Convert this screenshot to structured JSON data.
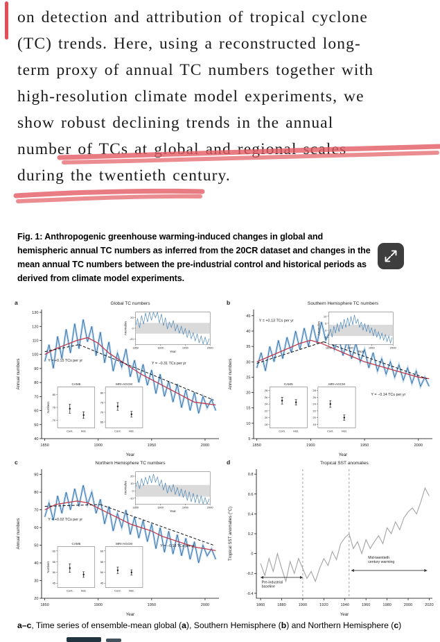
{
  "paragraph": {
    "lines": [
      "on detection and attribution of tropical cyclone",
      "(TC) trends. Here, using a reconstructed long-",
      "term proxy of annual TC numbers together with",
      "high-resolution climate model experiments, we",
      "show robust declining trends in the annual",
      "number of TCs at global and regional scales",
      "during the twentieth century."
    ]
  },
  "figure_caption": {
    "lines": [
      "Fig. 1: Anthropogenic greenhouse warming-induced changes in global and",
      "hemispheric annual TC numbers as inferred from the 20CR dataset and changes in the",
      "mean annual TC numbers between the pre-industrial control and historical periods as",
      "derived from climate model experiments."
    ]
  },
  "expand_button": {
    "icon": "expand-arrows-icon"
  },
  "subcaption": {
    "segments": [
      {
        "t": "a–c",
        "b": true
      },
      {
        "t": ", Time series of ensemble-mean global (",
        "b": false
      },
      {
        "t": "a",
        "b": true
      },
      {
        "t": "), Southern Hemisphere (",
        "b": false
      },
      {
        "t": "b",
        "b": true
      },
      {
        "t": ") and Northern Hemisphere (",
        "b": false
      },
      {
        "t": "c",
        "b": true
      },
      {
        "t": ")",
        "b": false
      }
    ]
  },
  "colors": {
    "marker_red": "#e35b63",
    "margin_bar_red": "#e23b41",
    "ensemble_blue": "#2e6da4",
    "band_blue": "#8ab8dc",
    "smoothed_red": "#c0394b",
    "trend_black": "#111111",
    "sst_gray": "#a3a3a3"
  },
  "chart_data": [
    {
      "type": "line",
      "panel_label": "a",
      "title": "Global TC numbers",
      "xlabel": "Year",
      "ylabel": "Annual numbers",
      "xlim": [
        1847,
        2013
      ],
      "ylim": [
        40,
        132
      ],
      "xticks": [
        1850,
        1900,
        1950,
        2000
      ],
      "yticks": [
        40,
        50,
        60,
        70,
        80,
        90,
        100,
        110,
        120,
        130
      ],
      "ml": 40,
      "series": [
        {
          "name": "20CR ensemble annual TC numbers",
          "color": "#2e6da4",
          "band": "#8ab8dc",
          "width": 0.9,
          "x0": 1850,
          "dx": 4,
          "y": [
            95,
            107,
            90,
            113,
            97,
            118,
            101,
            122,
            104,
            125,
            109,
            120,
            99,
            116,
            94,
            109,
            88,
            101,
            91,
            104,
            84,
            96,
            80,
            93,
            78,
            89,
            72,
            86,
            70,
            81,
            66,
            79,
            62,
            75,
            60,
            73,
            58,
            70,
            62,
            68,
            60
          ]
        },
        {
          "name": "smoothed",
          "color": "#c0394b",
          "width": 1.3,
          "x0": 1850,
          "dx": 10,
          "y": [
            100,
            104,
            107,
            110,
            112,
            108,
            101,
            96,
            91,
            86,
            82,
            78,
            74,
            70,
            66,
            65,
            64
          ]
        }
      ],
      "trends": [
        {
          "x1": 1850,
          "y1": 102,
          "x2": 1882,
          "y2": 107
        },
        {
          "x1": 1882,
          "y1": 107,
          "x2": 2008,
          "y2": 67.5
        }
      ],
      "annotations": [
        {
          "x": 1853,
          "y": 95,
          "text": "Y = +0.15 TCs per yr"
        },
        {
          "x": 1950,
          "y": 93,
          "text": "Y = −0.31 TCs per yr"
        }
      ],
      "anom_inset": {
        "rect": [
          0.53,
          0.02,
          0.95,
          0.27
        ],
        "xlim": [
          1850,
          2000
        ],
        "xticks": [
          1850,
          1900,
          1950,
          2000
        ],
        "ylim": [
          -30,
          30
        ],
        "yticks": [
          20,
          0,
          -20
        ],
        "band": [
          -10,
          10
        ],
        "ylabel": "Anomalies",
        "xlabel": "Year"
      },
      "box_insets": [
        {
          "title": "CAM5",
          "rect": [
            0.09,
            0.6,
            0.3,
            0.97
          ],
          "ylim": [
            67,
            83
          ],
          "yticks": [
            70,
            75,
            80
          ],
          "ylabel": "Numbers",
          "points": [
            {
              "label": "Cont.",
              "v": 74.5,
              "e": 1.8
            },
            {
              "label": "Hist.",
              "v": 72,
              "e": 1.3
            }
          ]
        },
        {
          "title": "MRI-AGCM",
          "rect": [
            0.36,
            0.6,
            0.57,
            0.97
          ],
          "ylim": [
            62,
            83
          ],
          "yticks": [
            65,
            70,
            75,
            80
          ],
          "points": [
            {
              "label": "Cont.",
              "v": 73,
              "e": 2
            },
            {
              "label": "Hist.",
              "v": 69,
              "e": 1.5
            }
          ]
        }
      ]
    },
    {
      "type": "line",
      "panel_label": "b",
      "title": "Southern Hemisphere TC numbers",
      "xlabel": "Year",
      "ylabel": "Annual numbers",
      "xlim": [
        1847,
        2013
      ],
      "ylim": [
        5,
        47
      ],
      "xticks": [
        1850,
        1900,
        1950,
        2000
      ],
      "yticks": [
        5,
        10,
        15,
        20,
        25,
        30,
        35,
        40,
        45
      ],
      "ml": 40,
      "series": [
        {
          "name": "20CR ensemble annual TC numbers",
          "color": "#2e6da4",
          "band": "#8ab8dc",
          "width": 0.9,
          "x0": 1850,
          "dx": 4,
          "y": [
            28,
            33,
            27,
            35,
            30,
            37,
            31,
            38,
            33,
            40,
            34,
            41,
            35,
            42,
            36,
            43,
            37,
            40,
            34,
            38,
            32,
            37,
            31,
            36,
            30,
            34,
            28,
            33,
            27,
            31,
            26,
            30,
            25,
            29,
            24,
            28,
            23,
            27,
            22,
            25,
            22
          ]
        },
        {
          "name": "smoothed",
          "color": "#c0394b",
          "width": 1.3,
          "x0": 1850,
          "dx": 10,
          "y": [
            30,
            31.5,
            33,
            34.5,
            36,
            37,
            36,
            34.5,
            33,
            31.5,
            30,
            29,
            28,
            27,
            26,
            25,
            24.5
          ]
        }
      ],
      "trends": [
        {
          "x1": 1850,
          "y1": 29.5,
          "x2": 1912,
          "y2": 36.5
        },
        {
          "x1": 1912,
          "y1": 36.5,
          "x2": 2008,
          "y2": 24.5
        }
      ],
      "annotations": [
        {
          "x": 1852,
          "y": 43,
          "text": "Y = +0.13 TCs per yr"
        },
        {
          "x": 1956,
          "y": 19,
          "text": "Y = −0.14 TCs per yr"
        }
      ],
      "anom_inset": {
        "rect": [
          0.42,
          0.02,
          0.78,
          0.27
        ],
        "xlim": [
          1850,
          2000
        ],
        "xticks": [
          1850,
          1900,
          1950,
          2000
        ],
        "ylim": [
          -10,
          13
        ],
        "yticks": [
          10,
          5,
          0,
          -5
        ],
        "band": [
          -4,
          4
        ],
        "ylabel": "Anomalies",
        "xlabel": "Year"
      },
      "box_insets": [
        {
          "title": "CAM5",
          "rect": [
            0.09,
            0.6,
            0.3,
            0.97
          ],
          "ylim": [
            17,
            29
          ],
          "yticks": [
            18,
            20,
            22,
            24,
            26,
            28
          ],
          "points": [
            {
              "label": "Cont.",
              "v": 25,
              "e": 1
            },
            {
              "label": "Hist.",
              "v": 24.5,
              "e": 0.8
            }
          ]
        },
        {
          "title": "MRI-AGCM",
          "rect": [
            0.36,
            0.6,
            0.57,
            0.97
          ],
          "ylim": [
            17,
            29
          ],
          "yticks": [
            18,
            20,
            22,
            24,
            26,
            28
          ],
          "points": [
            {
              "label": "Cont.",
              "v": 24,
              "e": 1
            },
            {
              "label": "Hist.",
              "v": 20,
              "e": 0.8
            }
          ]
        }
      ]
    },
    {
      "type": "line",
      "panel_label": "c",
      "title": "Northern Hemisphere TC numbers",
      "xlabel": "Year",
      "ylabel": "Annual numbers",
      "xlim": [
        1847,
        2013
      ],
      "ylim": [
        20,
        93
      ],
      "xticks": [
        1850,
        1900,
        1950,
        2000
      ],
      "yticks": [
        20,
        30,
        40,
        50,
        60,
        70,
        80,
        90
      ],
      "ml": 40,
      "series": [
        {
          "name": "20CR ensemble annual TC numbers",
          "color": "#2e6da4",
          "band": "#8ab8dc",
          "width": 0.9,
          "x0": 1850,
          "dx": 4,
          "y": [
            66,
            74,
            64,
            78,
            68,
            80,
            70,
            82,
            72,
            84,
            73,
            80,
            68,
            76,
            62,
            72,
            58,
            68,
            60,
            70,
            56,
            66,
            54,
            64,
            52,
            62,
            48,
            60,
            46,
            58,
            45,
            56,
            44,
            54,
            42,
            52,
            40,
            50,
            44,
            48,
            42
          ]
        },
        {
          "name": "smoothed",
          "color": "#c0394b",
          "width": 1.3,
          "x0": 1850,
          "dx": 10,
          "y": [
            70,
            73,
            74,
            75,
            74,
            71,
            68,
            65,
            62,
            60,
            58,
            55,
            53,
            51,
            49,
            48,
            47
          ]
        }
      ],
      "trends": [
        {
          "x1": 1850,
          "y1": 72,
          "x2": 1902,
          "y2": 73
        },
        {
          "x1": 1902,
          "y1": 73,
          "x2": 2008,
          "y2": 50
        }
      ],
      "annotations": [
        {
          "x": 1853,
          "y": 64,
          "text": "Y = +0.02 TCs per yr"
        },
        {
          "x": 1958,
          "y": 49,
          "text": "Y = −0.18 TCs per yr"
        }
      ],
      "anom_inset": {
        "rect": [
          0.53,
          0.02,
          0.95,
          0.27
        ],
        "xlim": [
          1850,
          2000
        ],
        "xticks": [
          1850,
          1900,
          1950,
          2000
        ],
        "ylim": [
          -18,
          26
        ],
        "yticks": [
          20,
          10,
          0,
          -10
        ],
        "band": [
          -8,
          8
        ],
        "ylabel": "Anomalies",
        "xlabel": "Year"
      },
      "box_insets": [
        {
          "title": "CAM5",
          "rect": [
            0.09,
            0.6,
            0.3,
            0.97
          ],
          "ylim": [
            43,
            62
          ],
          "yticks": [
            45,
            50,
            55,
            60
          ],
          "ylabel": "Numbers",
          "points": [
            {
              "label": "Cont.",
              "v": 52,
              "e": 2
            },
            {
              "label": "Hist.",
              "v": 49,
              "e": 1.3
            }
          ]
        },
        {
          "title": "MRI-AGCM",
          "rect": [
            0.36,
            0.6,
            0.57,
            0.97
          ],
          "ylim": [
            43,
            62
          ],
          "yticks": [
            45,
            50,
            55,
            60
          ],
          "points": [
            {
              "label": "Cont.",
              "v": 51,
              "e": 1.5
            },
            {
              "label": "Hist.",
              "v": 50,
              "e": 1.2
            }
          ]
        }
      ]
    },
    {
      "type": "line",
      "panel_label": "d",
      "title": "Tropical SST anomalies",
      "xlabel": "Year",
      "ylabel": "Tropical SST anomalies (°C)",
      "xlim": [
        1856,
        2023
      ],
      "ylim": [
        -0.45,
        0.85
      ],
      "xticks": [
        1860,
        1880,
        1900,
        1920,
        1940,
        1960,
        1980,
        2000,
        2020
      ],
      "yticks": [
        -0.4,
        -0.2,
        0,
        0.2,
        0.4,
        0.6,
        0.8
      ],
      "ml": 44,
      "series": [
        {
          "name": "Tropical SST anomaly",
          "color": "#a3a3a3",
          "width": 1.1,
          "x0": 1860,
          "dx": 4,
          "y": [
            -0.1,
            -0.22,
            -0.05,
            -0.18,
            0.0,
            -0.15,
            -0.28,
            -0.08,
            -0.2,
            -0.05,
            -0.15,
            -0.25,
            -0.18,
            -0.28,
            -0.15,
            -0.05,
            -0.12,
            0.02,
            -0.06,
            0.1,
            0.16,
            0.2,
            0.05,
            0.12,
            0.0,
            0.14,
            0.05,
            0.12,
            0.18,
            0.1,
            0.26,
            0.2,
            0.32,
            0.24,
            0.36,
            0.42,
            0.46,
            0.4,
            0.52,
            0.66,
            0.58
          ]
        }
      ],
      "vlines": [
        1900,
        1944
      ],
      "arrows": [
        {
          "x1": 1860,
          "x2": 1900,
          "y": -0.24,
          "labels": [
            "Pre-industrial",
            "baseline"
          ],
          "lx": 1861,
          "ly": -0.3
        },
        {
          "x1": 1946,
          "x2": 2018,
          "y": -0.17,
          "labels": [
            "Mid-twentieth",
            "century warming"
          ],
          "lx": 1962,
          "ly": -0.05
        }
      ]
    }
  ]
}
